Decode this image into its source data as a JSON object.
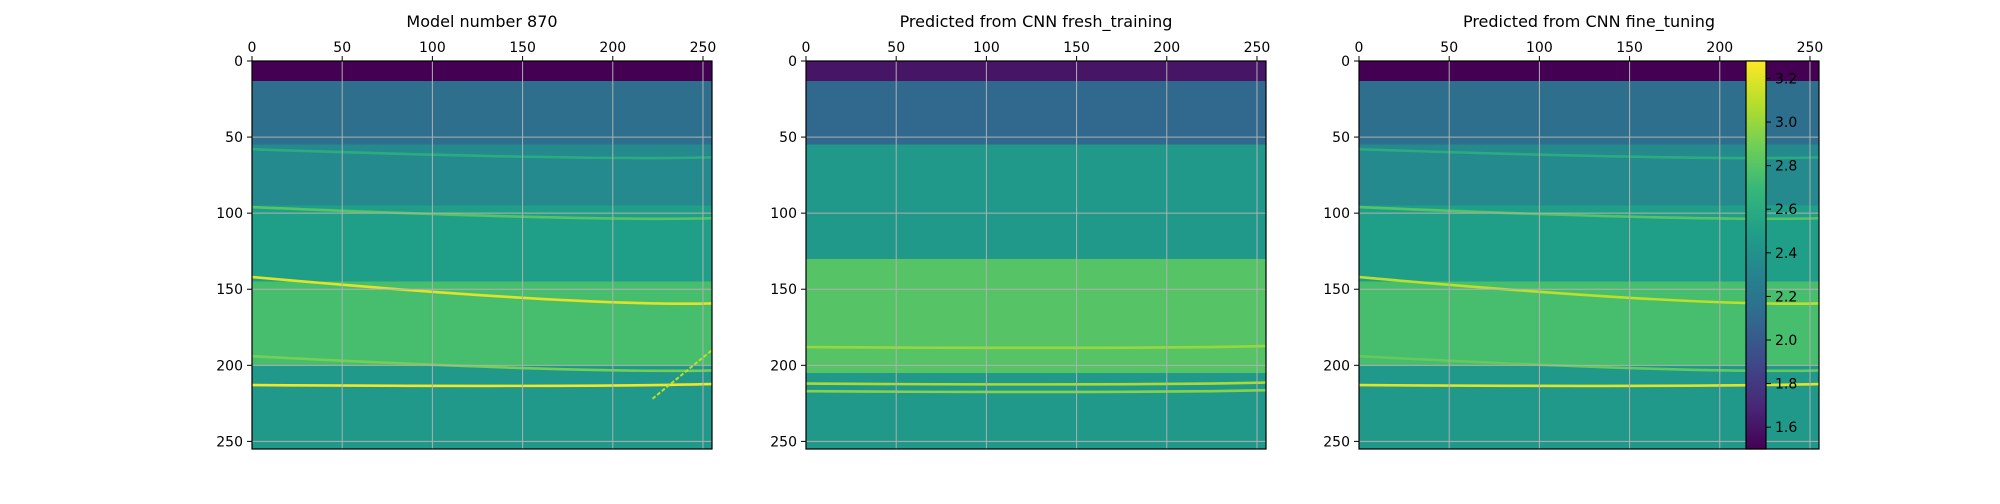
{
  "chart_data": [
    {
      "type": "heatmap",
      "title": "Model number 870",
      "x_ticks": [
        0,
        50,
        100,
        150,
        200,
        250
      ],
      "y_ticks": [
        0,
        50,
        100,
        150,
        200,
        250
      ],
      "xlim": [
        0,
        255
      ],
      "ylim": [
        255,
        0
      ],
      "grid": true,
      "colormap": "viridis",
      "layers": [
        {
          "depth": [
            0,
            13
          ],
          "value": 1.5
        },
        {
          "depth": [
            13,
            55
          ],
          "value": 2.15
        },
        {
          "depth": [
            55,
            95
          ],
          "value": 2.35
        },
        {
          "depth": [
            95,
            145
          ],
          "value": 2.5
        },
        {
          "depth": [
            145,
            200
          ],
          "value": 2.75
        },
        {
          "depth": [
            200,
            255
          ],
          "value": 2.45
        }
      ],
      "horizons": [
        {
          "depth_start": 58,
          "depth_end": 64,
          "value": 2.6
        },
        {
          "depth_start": 96,
          "depth_end": 104,
          "value": 2.8
        },
        {
          "depth_start": 142,
          "depth_end": 160,
          "value": 3.2
        },
        {
          "depth_start": 194,
          "depth_end": 204,
          "value": 2.9
        },
        {
          "depth_start": 213,
          "depth_end": 213,
          "value": 3.25
        }
      ],
      "features": [
        {
          "kind": "dipping-line",
          "from": [
            222,
            222
          ],
          "to": [
            255,
            190
          ],
          "value": 3.1
        }
      ]
    },
    {
      "type": "heatmap",
      "title": "Predicted from CNN fresh_training",
      "x_ticks": [
        0,
        50,
        100,
        150,
        200,
        250
      ],
      "y_ticks": [
        0,
        50,
        100,
        150,
        200,
        250
      ],
      "xlim": [
        0,
        255
      ],
      "ylim": [
        255,
        0
      ],
      "grid": true,
      "colormap": "viridis",
      "layers": [
        {
          "depth": [
            0,
            13
          ],
          "value": 1.6
        },
        {
          "depth": [
            13,
            55
          ],
          "value": 2.1
        },
        {
          "depth": [
            55,
            130
          ],
          "value": 2.45
        },
        {
          "depth": [
            130,
            205
          ],
          "value": 2.8
        },
        {
          "depth": [
            205,
            255
          ],
          "value": 2.45
        }
      ],
      "horizons": [
        {
          "depth_start": 188,
          "depth_end": 188,
          "value": 3.0
        },
        {
          "depth_start": 212,
          "depth_end": 212,
          "value": 3.05
        },
        {
          "depth_start": 217,
          "depth_end": 217,
          "value": 2.95
        }
      ],
      "features": []
    },
    {
      "type": "heatmap",
      "title": "Predicted from CNN fine_tuning",
      "x_ticks": [
        0,
        50,
        100,
        150,
        200,
        250
      ],
      "y_ticks": [
        0,
        50,
        100,
        150,
        200,
        250
      ],
      "xlim": [
        0,
        255
      ],
      "ylim": [
        255,
        0
      ],
      "grid": true,
      "colormap": "viridis",
      "layers": [
        {
          "depth": [
            0,
            13
          ],
          "value": 1.5
        },
        {
          "depth": [
            13,
            55
          ],
          "value": 2.15
        },
        {
          "depth": [
            55,
            95
          ],
          "value": 2.35
        },
        {
          "depth": [
            95,
            145
          ],
          "value": 2.5
        },
        {
          "depth": [
            145,
            200
          ],
          "value": 2.75
        },
        {
          "depth": [
            200,
            255
          ],
          "value": 2.45
        }
      ],
      "horizons": [
        {
          "depth_start": 58,
          "depth_end": 64,
          "value": 2.6
        },
        {
          "depth_start": 96,
          "depth_end": 104,
          "value": 2.8
        },
        {
          "depth_start": 142,
          "depth_end": 160,
          "value": 3.1
        },
        {
          "depth_start": 194,
          "depth_end": 204,
          "value": 2.85
        },
        {
          "depth_start": 213,
          "depth_end": 213,
          "value": 3.2
        }
      ],
      "features": []
    }
  ],
  "colorbar": {
    "colormap": "viridis",
    "range": [
      1.5,
      3.28
    ],
    "ticks": [
      1.6,
      1.8,
      2.0,
      2.2,
      2.4,
      2.6,
      2.8,
      3.0,
      3.2
    ]
  },
  "colors": {
    "viridis_stops": [
      "#440154",
      "#482878",
      "#3e4989",
      "#31688e",
      "#26828e",
      "#1f9e89",
      "#35b779",
      "#6ece58",
      "#b5de2b",
      "#fde725"
    ],
    "grid": "#b0b0b0",
    "axis": "#000000"
  }
}
